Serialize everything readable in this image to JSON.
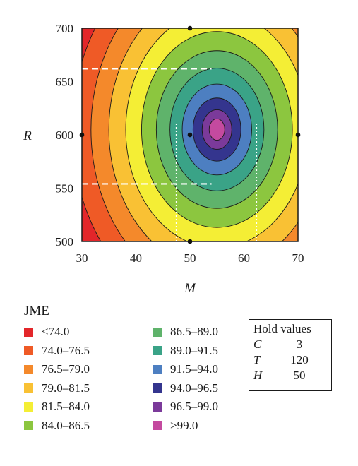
{
  "chart_data": {
    "type": "contour",
    "xlabel": "M",
    "ylabel": "R",
    "xlim": [
      30,
      70
    ],
    "ylim": [
      500,
      700
    ],
    "xticks": [
      "30",
      "40",
      "50",
      "60",
      "70"
    ],
    "yticks": [
      "500",
      "550",
      "600",
      "650",
      "700"
    ],
    "response": "JME",
    "optimum": {
      "x": 55,
      "y": 605
    },
    "contour_levels": [
      74.0,
      76.5,
      79.0,
      81.5,
      84.0,
      86.5,
      89.0,
      91.5,
      94.0,
      96.5,
      99.0
    ],
    "level_colors": [
      "#e3262a",
      "#ef5a26",
      "#f4892b",
      "#f9c134",
      "#f4ee35",
      "#8cc63f",
      "#5fb36b",
      "#3aa387",
      "#4d7fc1",
      "#34358e",
      "#7b3a9a",
      "#c44a9f"
    ],
    "design_points": [
      {
        "x": 30,
        "y": 600
      },
      {
        "x": 70,
        "y": 600
      },
      {
        "x": 50,
        "y": 700
      },
      {
        "x": 50,
        "y": 500
      },
      {
        "x": 50,
        "y": 600
      }
    ],
    "dashed_lines": [
      {
        "x": [
          30,
          54
        ],
        "y": [
          662,
          662
        ]
      },
      {
        "x": [
          30,
          54
        ],
        "y": [
          554,
          554
        ]
      }
    ],
    "dotted_lines": [
      {
        "x": [
          47.5,
          47.5
        ],
        "y": [
          500,
          610
        ]
      },
      {
        "x": [
          62.3,
          62.3
        ],
        "y": [
          500,
          610
        ]
      }
    ],
    "legend": {
      "title": "JME",
      "entries": [
        {
          "label": "<74.0",
          "color": "#e3262a"
        },
        {
          "label": "74.0–76.5",
          "color": "#ef5a26"
        },
        {
          "label": "76.5–79.0",
          "color": "#f4892b"
        },
        {
          "label": "79.0–81.5",
          "color": "#f9c134"
        },
        {
          "label": "81.5–84.0",
          "color": "#f4ee35"
        },
        {
          "label": "84.0–86.5",
          "color": "#8cc63f"
        },
        {
          "label": "86.5–89.0",
          "color": "#5fb36b"
        },
        {
          "label": "89.0–91.5",
          "color": "#3aa387"
        },
        {
          "label": "91.5–94.0",
          "color": "#4d7fc1"
        },
        {
          "label": "94.0–96.5",
          "color": "#34358e"
        },
        {
          "label": "96.5–99.0",
          "color": "#7b3a9a"
        },
        {
          "label": ">99.0",
          "color": "#c44a9f"
        }
      ]
    },
    "hold_values": {
      "title": "Hold values",
      "items": [
        {
          "name": "C",
          "value": "3"
        },
        {
          "name": "T",
          "value": "120"
        },
        {
          "name": "H",
          "value": "50"
        }
      ]
    }
  }
}
